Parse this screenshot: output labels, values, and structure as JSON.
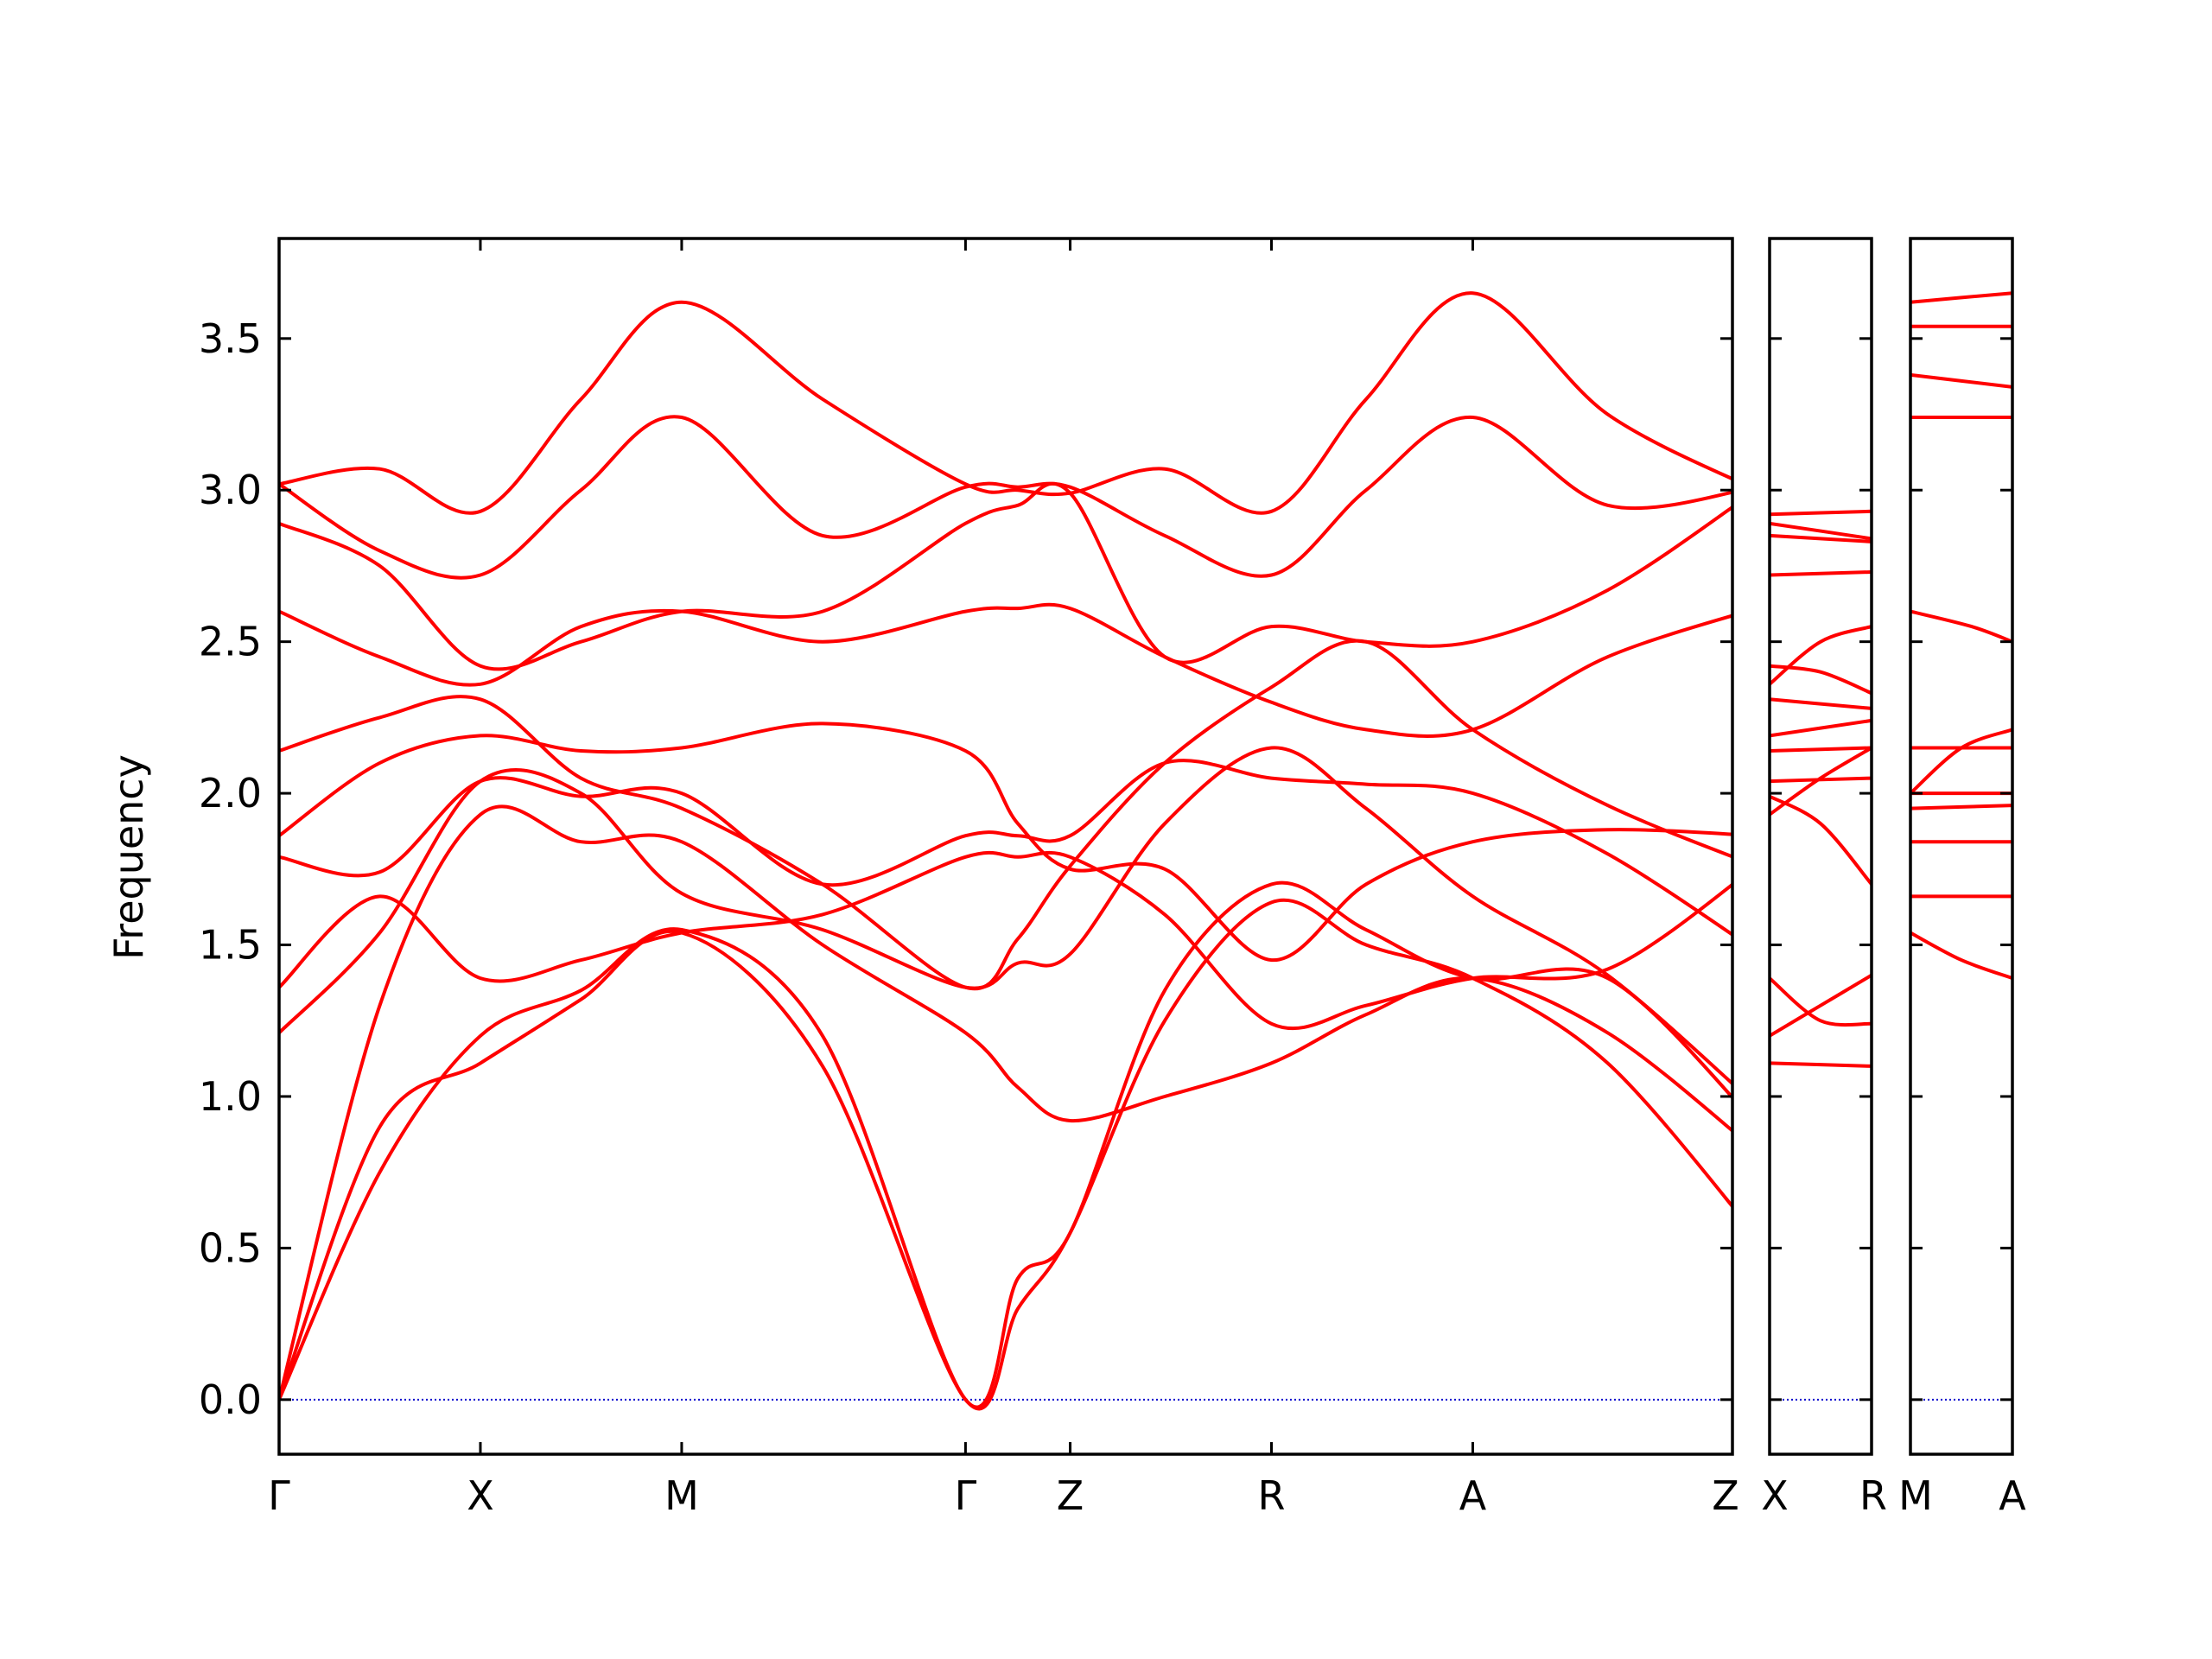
{
  "chart_data": {
    "type": "line",
    "title": "",
    "xlabel": "",
    "ylabel": "Frequency",
    "ylim": [
      -0.18,
      3.83
    ],
    "y_ticks": [
      0.0,
      0.5,
      1.0,
      1.5,
      2.0,
      2.5,
      3.0,
      3.5
    ],
    "y_tick_labels": [
      "0.0",
      "0.5",
      "1.0",
      "1.5",
      "2.0",
      "2.5",
      "3.0",
      "3.5"
    ],
    "grid": false,
    "line_color": "#ff0000",
    "zero_line_color": "#0000cc",
    "panels": [
      {
        "name": "main-panel",
        "x_range": [
          0,
          7.22
        ],
        "ticks": [
          {
            "x": 0,
            "label": "Γ"
          },
          {
            "x": 1,
            "label": "X"
          },
          {
            "x": 2,
            "label": "M"
          },
          {
            "x": 3.41,
            "label": "Γ"
          },
          {
            "x": 3.93,
            "label": "Z"
          },
          {
            "x": 4.93,
            "label": "R"
          },
          {
            "x": 5.93,
            "label": "A"
          },
          {
            "x": 7.34,
            "label": "Z"
          }
        ],
        "series": [
          {
            "x": [
              0,
              0.5,
              1,
              1.5,
              2,
              2.7,
              3.41,
              3.67,
              3.93,
              4.4,
              4.93,
              5.4,
              5.93,
              6.6,
              7.34
            ],
            "values": [
              0,
              0.9,
              1.11,
              1.32,
              1.54,
              1.1,
              0,
              0.3,
              0.55,
              1.25,
              1.64,
              1.5,
              1.39,
              1.11,
              0.54
            ]
          },
          {
            "x": [
              0,
              0.5,
              1,
              1.5,
              2,
              2.7,
              3.41,
              3.67,
              3.93,
              4.4,
              4.93,
              5.4,
              5.93,
              6.6,
              7.34
            ],
            "values": [
              0,
              0.75,
              1.2,
              1.35,
              1.55,
              1.2,
              0,
              0.4,
              0.55,
              1.35,
              1.7,
              1.55,
              1.39,
              1.39,
              0.91
            ]
          },
          {
            "x": [
              0,
              0.5,
              1,
              1.5,
              2,
              2.7,
              3.41,
              3.67,
              3.93,
              4.4,
              4.93,
              5.4,
              5.93,
              6.6,
              7.34
            ],
            "values": [
              0,
              1.3,
              1.93,
              1.84,
              1.84,
              1.5,
              1.21,
              1.03,
              0.92,
              1.0,
              1.11,
              1.27,
              1.39,
              1.21,
              0.82
            ]
          },
          {
            "x": [
              0,
              0.5,
              1,
              1.5,
              2,
              2.7,
              3.41,
              3.67,
              3.93,
              4.4,
              4.93,
              5.4,
              5.93,
              6.6,
              7.34
            ],
            "values": [
              1.21,
              1.54,
              2.04,
              2.0,
              1.67,
              1.55,
              1.36,
              1.44,
              1.47,
              1.9,
              2.15,
              1.95,
              1.66,
              1.4,
              0.97
            ]
          },
          {
            "x": [
              0,
              0.5,
              1,
              1.5,
              2,
              2.7,
              3.41,
              3.67,
              3.93,
              4.4,
              4.93,
              5.4,
              5.93,
              6.6,
              7.34
            ],
            "values": [
              1.36,
              1.66,
              1.39,
              1.45,
              1.54,
              1.6,
              1.79,
              1.79,
              1.79,
              1.6,
              1.24,
              1.3,
              1.39,
              1.42,
              1.76
            ]
          },
          {
            "x": [
              0,
              0.5,
              1,
              1.5,
              2,
              2.7,
              3.41,
              3.67,
              3.93,
              4.4,
              4.93,
              5.4,
              5.93,
              6.6,
              7.34
            ],
            "values": [
              1.79,
              1.74,
              2.04,
              1.99,
              2.0,
              1.7,
              1.86,
              1.86,
              1.86,
              2.1,
              2.05,
              2.03,
              2.0,
              1.8,
              1.48
            ]
          },
          {
            "x": [
              0,
              0.5,
              1,
              1.5,
              2,
              2.7,
              3.41,
              3.67,
              3.93,
              4.4,
              4.93,
              5.4,
              5.93,
              6.6,
              7.34
            ],
            "values": [
              1.86,
              2.1,
              2.19,
              2.14,
              2.15,
              2.23,
              2.14,
              1.9,
              1.75,
              1.75,
              1.45,
              1.7,
              1.84,
              1.88,
              1.86
            ]
          },
          {
            "x": [
              0,
              0.5,
              1,
              1.5,
              2,
              2.7,
              3.41,
              3.67,
              3.93,
              4.4,
              4.93,
              5.4,
              5.93,
              6.6,
              7.34
            ],
            "values": [
              2.14,
              2.25,
              2.31,
              2.05,
              1.95,
              1.7,
              1.36,
              1.52,
              1.76,
              2.1,
              2.35,
              2.5,
              2.21,
              1.96,
              1.76
            ]
          },
          {
            "x": [
              0,
              0.5,
              1,
              1.5,
              2,
              2.7,
              3.41,
              3.67,
              3.93,
              4.4,
              4.93,
              5.4,
              5.93,
              6.6,
              7.34
            ],
            "values": [
              2.6,
              2.45,
              2.36,
              2.55,
              2.6,
              2.5,
              2.6,
              2.61,
              2.61,
              2.45,
              2.3,
              2.21,
              2.21,
              2.45,
              2.61
            ]
          },
          {
            "x": [
              0,
              0.5,
              1,
              1.5,
              2,
              2.7,
              3.41,
              3.67,
              3.93,
              4.4,
              4.93,
              5.4,
              5.93,
              6.6,
              7.34
            ],
            "values": [
              2.89,
              2.75,
              2.42,
              2.5,
              2.6,
              2.6,
              2.89,
              2.95,
              2.99,
              2.45,
              2.55,
              2.5,
              2.5,
              2.67,
              3.0
            ]
          },
          {
            "x": [
              0,
              0.5,
              1,
              1.5,
              2,
              2.7,
              3.41,
              3.67,
              3.93,
              4.4,
              4.93,
              5.4,
              5.93,
              6.6,
              7.34
            ],
            "values": [
              3.02,
              2.8,
              2.72,
              3.0,
              3.24,
              2.85,
              3.01,
              3.01,
              3.01,
              2.85,
              2.72,
              3.0,
              3.24,
              2.95,
              3.01
            ]
          },
          {
            "x": [
              0,
              0.5,
              1,
              1.5,
              2,
              2.7,
              3.41,
              3.67,
              3.93,
              4.4,
              4.93,
              5.4,
              5.93,
              6.6,
              7.34
            ],
            "values": [
              3.02,
              3.07,
              2.93,
              3.3,
              3.62,
              3.3,
              3.02,
              3.0,
              2.99,
              3.07,
              2.93,
              3.3,
              3.65,
              3.25,
              3.0
            ]
          }
        ]
      },
      {
        "name": "xr-panel",
        "x_range": [
          0,
          1
        ],
        "ticks": [
          {
            "x": 0,
            "label": "X"
          },
          {
            "x": 1,
            "label": "R"
          }
        ],
        "series": [
          {
            "x": [
              0,
              1
            ],
            "values": [
              1.11,
              1.1
            ]
          },
          {
            "x": [
              0,
              0.5,
              1
            ],
            "values": [
              1.2,
              1.3,
              1.4
            ]
          },
          {
            "x": [
              0,
              0.5,
              1
            ],
            "values": [
              1.39,
              1.25,
              1.24
            ]
          },
          {
            "x": [
              0,
              0.5,
              1
            ],
            "values": [
              1.93,
              2.05,
              2.15
            ]
          },
          {
            "x": [
              0,
              0.5,
              1
            ],
            "values": [
              1.99,
              1.9,
              1.7
            ]
          },
          {
            "x": [
              0,
              1
            ],
            "values": [
              2.04,
              2.05
            ]
          },
          {
            "x": [
              0,
              1
            ],
            "values": [
              2.14,
              2.15
            ]
          },
          {
            "x": [
              0,
              1
            ],
            "values": [
              2.19,
              2.24
            ]
          },
          {
            "x": [
              0,
              1
            ],
            "values": [
              2.31,
              2.28
            ]
          },
          {
            "x": [
              0,
              0.5,
              1
            ],
            "values": [
              2.36,
              2.5,
              2.55
            ]
          },
          {
            "x": [
              0,
              0.5,
              1
            ],
            "values": [
              2.42,
              2.4,
              2.33
            ]
          },
          {
            "x": [
              0,
              1
            ],
            "values": [
              2.72,
              2.73
            ]
          },
          {
            "x": [
              0,
              1
            ],
            "values": [
              2.85,
              2.83
            ]
          },
          {
            "x": [
              0,
              1
            ],
            "values": [
              2.89,
              2.84
            ]
          },
          {
            "x": [
              0,
              1
            ],
            "values": [
              2.92,
              2.93
            ]
          }
        ]
      },
      {
        "name": "ma-panel",
        "x_range": [
          0,
          1
        ],
        "ticks": [
          {
            "x": 0,
            "label": "M"
          },
          {
            "x": 1,
            "label": "A"
          }
        ],
        "series": [
          {
            "x": [
              0,
              0.5,
              1
            ],
            "values": [
              1.54,
              1.45,
              1.39
            ]
          },
          {
            "x": [
              0,
              1
            ],
            "values": [
              1.66,
              1.66
            ]
          },
          {
            "x": [
              0,
              1
            ],
            "values": [
              1.84,
              1.84
            ]
          },
          {
            "x": [
              0,
              1
            ],
            "values": [
              1.95,
              1.96
            ]
          },
          {
            "x": [
              0,
              1
            ],
            "values": [
              2.0,
              2.0
            ]
          },
          {
            "x": [
              0,
              0.5,
              1
            ],
            "values": [
              2.0,
              2.15,
              2.21
            ]
          },
          {
            "x": [
              0,
              1
            ],
            "values": [
              2.15,
              2.15
            ]
          },
          {
            "x": [
              0,
              0.6,
              1
            ],
            "values": [
              2.6,
              2.55,
              2.5
            ]
          },
          {
            "x": [
              0,
              1
            ],
            "values": [
              3.24,
              3.24
            ]
          },
          {
            "x": [
              0,
              1
            ],
            "values": [
              3.38,
              3.34
            ]
          },
          {
            "x": [
              0,
              1
            ],
            "values": [
              3.54,
              3.54
            ]
          },
          {
            "x": [
              0,
              1
            ],
            "values": [
              3.62,
              3.65
            ]
          }
        ]
      }
    ]
  }
}
